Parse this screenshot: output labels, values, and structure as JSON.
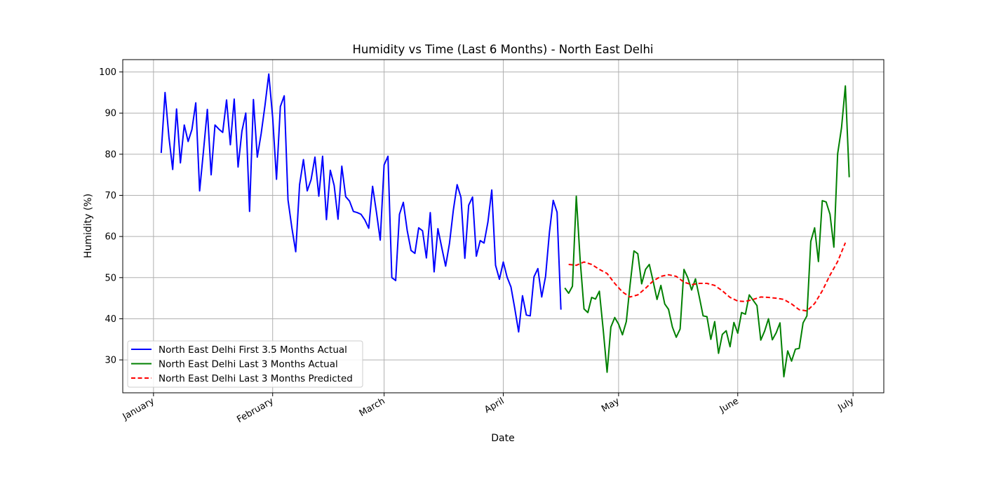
{
  "chart_data": {
    "type": "line",
    "title": "Humidity vs Time (Last 6 Months) - North East Delhi",
    "xlabel": "Date",
    "ylabel": "Humidity (%)",
    "x_ticks": [
      {
        "label": "January",
        "date": "2024-01-01"
      },
      {
        "label": "February",
        "date": "2024-02-01"
      },
      {
        "label": "March",
        "date": "2024-03-01"
      },
      {
        "label": "April",
        "date": "2024-04-01"
      },
      {
        "label": "May",
        "date": "2024-05-01"
      },
      {
        "label": "June",
        "date": "2024-06-01"
      },
      {
        "label": "July",
        "date": "2024-07-01"
      }
    ],
    "y_ticks": [
      30,
      40,
      50,
      60,
      70,
      80,
      90,
      100
    ],
    "xlim": [
      "2023-12-24",
      "2024-07-09"
    ],
    "ylim": [
      22,
      103
    ],
    "grid": true,
    "legend_position": "lower-left",
    "series": [
      {
        "name": "North East Delhi First 3.5 Months Actual",
        "color": "#0000ff",
        "style": "solid",
        "x": [
          "2024-01-03",
          "2024-01-04",
          "2024-01-05",
          "2024-01-06",
          "2024-01-07",
          "2024-01-08",
          "2024-01-09",
          "2024-01-10",
          "2024-01-11",
          "2024-01-12",
          "2024-01-13",
          "2024-01-14",
          "2024-01-15",
          "2024-01-16",
          "2024-01-17",
          "2024-01-18",
          "2024-01-19",
          "2024-01-20",
          "2024-01-21",
          "2024-01-22",
          "2024-01-23",
          "2024-01-24",
          "2024-01-25",
          "2024-01-26",
          "2024-01-27",
          "2024-01-28",
          "2024-01-29",
          "2024-01-30",
          "2024-01-31",
          "2024-02-01",
          "2024-02-02",
          "2024-02-03",
          "2024-02-04",
          "2024-02-05",
          "2024-02-06",
          "2024-02-07",
          "2024-02-08",
          "2024-02-09",
          "2024-02-10",
          "2024-02-11",
          "2024-02-12",
          "2024-02-13",
          "2024-02-14",
          "2024-02-15",
          "2024-02-16",
          "2024-02-17",
          "2024-02-18",
          "2024-02-19",
          "2024-02-20",
          "2024-02-21",
          "2024-02-22",
          "2024-02-23",
          "2024-02-24",
          "2024-02-25",
          "2024-02-26",
          "2024-02-27",
          "2024-02-28",
          "2024-02-29",
          "2024-03-01",
          "2024-03-02",
          "2024-03-03",
          "2024-03-04",
          "2024-03-05",
          "2024-03-06",
          "2024-03-07",
          "2024-03-08",
          "2024-03-09",
          "2024-03-10",
          "2024-03-11",
          "2024-03-12",
          "2024-03-13",
          "2024-03-14",
          "2024-03-15",
          "2024-03-16",
          "2024-03-17",
          "2024-03-18",
          "2024-03-19",
          "2024-03-20",
          "2024-03-21",
          "2024-03-22",
          "2024-03-23",
          "2024-03-24",
          "2024-03-25",
          "2024-03-26",
          "2024-03-27",
          "2024-03-28",
          "2024-03-29",
          "2024-03-30",
          "2024-03-31",
          "2024-04-01",
          "2024-04-02",
          "2024-04-03",
          "2024-04-04",
          "2024-04-05",
          "2024-04-06",
          "2024-04-07",
          "2024-04-08",
          "2024-04-09",
          "2024-04-10",
          "2024-04-11",
          "2024-04-12",
          "2024-04-13",
          "2024-04-14",
          "2024-04-15",
          "2024-04-16"
        ],
        "y": [
          80.3,
          95.0,
          84.2,
          76.3,
          91.0,
          77.9,
          87.1,
          83.1,
          86.0,
          92.5,
          71.1,
          80.8,
          90.9,
          75.0,
          87.1,
          86.1,
          85.3,
          93.2,
          82.3,
          93.4,
          76.9,
          85.6,
          90.0,
          66.1,
          93.3,
          79.3,
          85.0,
          91.9,
          99.5,
          89.0,
          73.9,
          91.6,
          94.2,
          68.9,
          62.1,
          56.3,
          72.6,
          78.7,
          71.1,
          73.8,
          79.3,
          69.8,
          79.5,
          64.1,
          76.1,
          72.4,
          64.2,
          77.1,
          69.7,
          68.6,
          66.1,
          65.8,
          65.4,
          64.0,
          62.0,
          72.2,
          65.9,
          59.1,
          77.4,
          79.5,
          50.0,
          49.3,
          65.4,
          68.3,
          61.5,
          56.6,
          55.9,
          62.1,
          61.4,
          54.8,
          65.8,
          51.4,
          61.9,
          57.3,
          52.8,
          58.3,
          66.4,
          72.6,
          69.5,
          54.7,
          67.6,
          69.6,
          55.2,
          59.0,
          58.4,
          63.5,
          71.3,
          53.0,
          49.6,
          53.8,
          50.1,
          47.7,
          42.5,
          36.8,
          45.6,
          40.9,
          40.7,
          50.2,
          52.2,
          45.3,
          50.3,
          61.0,
          68.8,
          65.9,
          42.2
        ]
      },
      {
        "name": "North East Delhi Last 3 Months Actual",
        "color": "#008000",
        "style": "solid",
        "x": [
          "2024-04-17",
          "2024-04-18",
          "2024-04-19",
          "2024-04-20",
          "2024-04-21",
          "2024-04-22",
          "2024-04-23",
          "2024-04-24",
          "2024-04-25",
          "2024-04-26",
          "2024-04-27",
          "2024-04-28",
          "2024-04-29",
          "2024-04-30",
          "2024-05-01",
          "2024-05-02",
          "2024-05-03",
          "2024-05-04",
          "2024-05-05",
          "2024-05-06",
          "2024-05-07",
          "2024-05-08",
          "2024-05-09",
          "2024-05-10",
          "2024-05-11",
          "2024-05-12",
          "2024-05-13",
          "2024-05-14",
          "2024-05-15",
          "2024-05-16",
          "2024-05-17",
          "2024-05-18",
          "2024-05-19",
          "2024-05-20",
          "2024-05-21",
          "2024-05-22",
          "2024-05-23",
          "2024-05-24",
          "2024-05-25",
          "2024-05-26",
          "2024-05-27",
          "2024-05-28",
          "2024-05-29",
          "2024-05-30",
          "2024-05-31",
          "2024-06-01",
          "2024-06-02",
          "2024-06-03",
          "2024-06-04",
          "2024-06-05",
          "2024-06-06",
          "2024-06-07",
          "2024-06-08",
          "2024-06-09",
          "2024-06-10",
          "2024-06-11",
          "2024-06-12",
          "2024-06-13",
          "2024-06-14",
          "2024-06-15",
          "2024-06-16",
          "2024-06-17",
          "2024-06-18",
          "2024-06-19",
          "2024-06-20",
          "2024-06-21",
          "2024-06-22",
          "2024-06-23",
          "2024-06-24",
          "2024-06-25",
          "2024-06-26",
          "2024-06-27",
          "2024-06-28",
          "2024-06-29",
          "2024-06-30"
        ],
        "y": [
          47.5,
          46.2,
          47.9,
          69.8,
          54.3,
          42.4,
          41.5,
          45.2,
          44.8,
          46.7,
          37.3,
          27.0,
          38.0,
          40.3,
          38.7,
          36.1,
          39.3,
          48.3,
          56.5,
          55.8,
          48.5,
          52.0,
          53.2,
          49.1,
          44.7,
          48.1,
          43.6,
          42.3,
          38.0,
          35.5,
          37.5,
          52.0,
          50.0,
          47.0,
          49.7,
          45.3,
          40.7,
          40.5,
          35.0,
          39.3,
          31.6,
          36.2,
          37.1,
          33.2,
          39.1,
          36.5,
          41.5,
          41.1,
          45.8,
          44.5,
          43.2,
          34.8,
          37.0,
          40.0,
          34.9,
          36.6,
          39.0,
          25.9,
          32.2,
          29.7,
          32.6,
          32.8,
          39.0,
          40.7,
          58.8,
          62.1,
          53.9,
          68.7,
          68.4,
          65.4,
          57.4,
          80.1,
          86.4,
          96.6,
          74.4
        ]
      },
      {
        "name": "North East Delhi Last 3 Months Predicted",
        "color": "#ff0000",
        "style": "dashed",
        "x": [
          "2024-04-18",
          "2024-04-20",
          "2024-04-22",
          "2024-04-24",
          "2024-04-26",
          "2024-04-28",
          "2024-04-30",
          "2024-05-02",
          "2024-05-04",
          "2024-05-06",
          "2024-05-08",
          "2024-05-10",
          "2024-05-12",
          "2024-05-14",
          "2024-05-16",
          "2024-05-18",
          "2024-05-20",
          "2024-05-22",
          "2024-05-24",
          "2024-05-26",
          "2024-05-28",
          "2024-05-30",
          "2024-06-01",
          "2024-06-03",
          "2024-06-05",
          "2024-06-07",
          "2024-06-09",
          "2024-06-11",
          "2024-06-13",
          "2024-06-15",
          "2024-06-17",
          "2024-06-19",
          "2024-06-21",
          "2024-06-23",
          "2024-06-25",
          "2024-06-27",
          "2024-06-29"
        ],
        "y": [
          53.2,
          53.0,
          53.8,
          53.2,
          52.0,
          51.0,
          48.6,
          46.5,
          45.3,
          45.8,
          47.4,
          49.2,
          50.3,
          50.7,
          50.3,
          48.9,
          48.3,
          48.6,
          48.6,
          48.1,
          46.8,
          45.2,
          44.3,
          44.2,
          44.7,
          45.3,
          45.2,
          45.0,
          44.7,
          43.6,
          42.2,
          41.9,
          43.7,
          46.8,
          50.6,
          53.9,
          58.5
        ]
      }
    ]
  }
}
